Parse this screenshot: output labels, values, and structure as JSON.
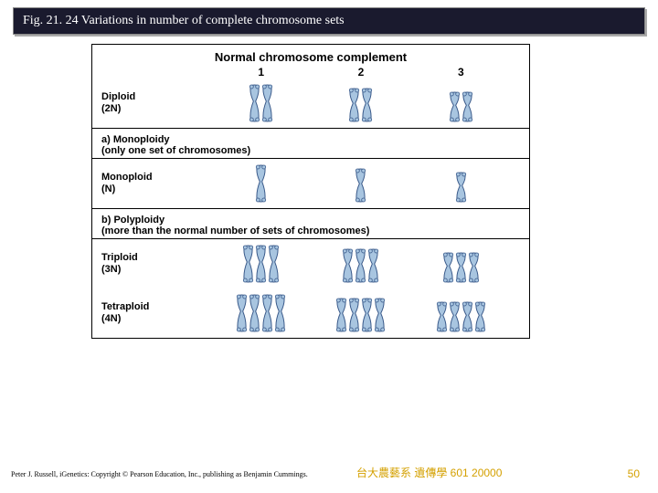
{
  "title": "Fig. 21. 24  Variations in number of complete chromosome sets",
  "figure": {
    "header": "Normal chromosome complement",
    "columns": [
      "1",
      "2",
      "3"
    ],
    "chrom_fill": "#a8c5e0",
    "chrom_stroke": "#3a5a8a",
    "rows": [
      {
        "label_main": "Diploid",
        "label_sub": "(2N)",
        "counts": [
          2,
          2,
          2
        ],
        "heights": [
          42,
          38,
          34
        ]
      }
    ],
    "section_a": {
      "tag": "a)",
      "title": "Monoploidy",
      "subtitle": "(only one set of chromosomes)"
    },
    "rows_a": [
      {
        "label_main": "Monoploid",
        "label_sub": "(N)",
        "counts": [
          1,
          1,
          1
        ],
        "heights": [
          42,
          38,
          34
        ]
      }
    ],
    "section_b": {
      "tag": "b)",
      "title": "Polyploidy",
      "subtitle": "(more than the normal number of sets of chromosomes)"
    },
    "rows_b": [
      {
        "label_main": "Triploid",
        "label_sub": "(3N)",
        "counts": [
          3,
          3,
          3
        ],
        "heights": [
          42,
          38,
          34
        ]
      },
      {
        "label_main": "Tetraploid",
        "label_sub": "(4N)",
        "counts": [
          4,
          4,
          4
        ],
        "heights": [
          42,
          38,
          34
        ]
      }
    ]
  },
  "credit": "Peter J. Russell, iGenetics: Copyright © Pearson Education, Inc., publishing as Benjamin Cummings.",
  "footer_center": "台大農藝系 遺傳學 601 20000",
  "page_number": "50"
}
